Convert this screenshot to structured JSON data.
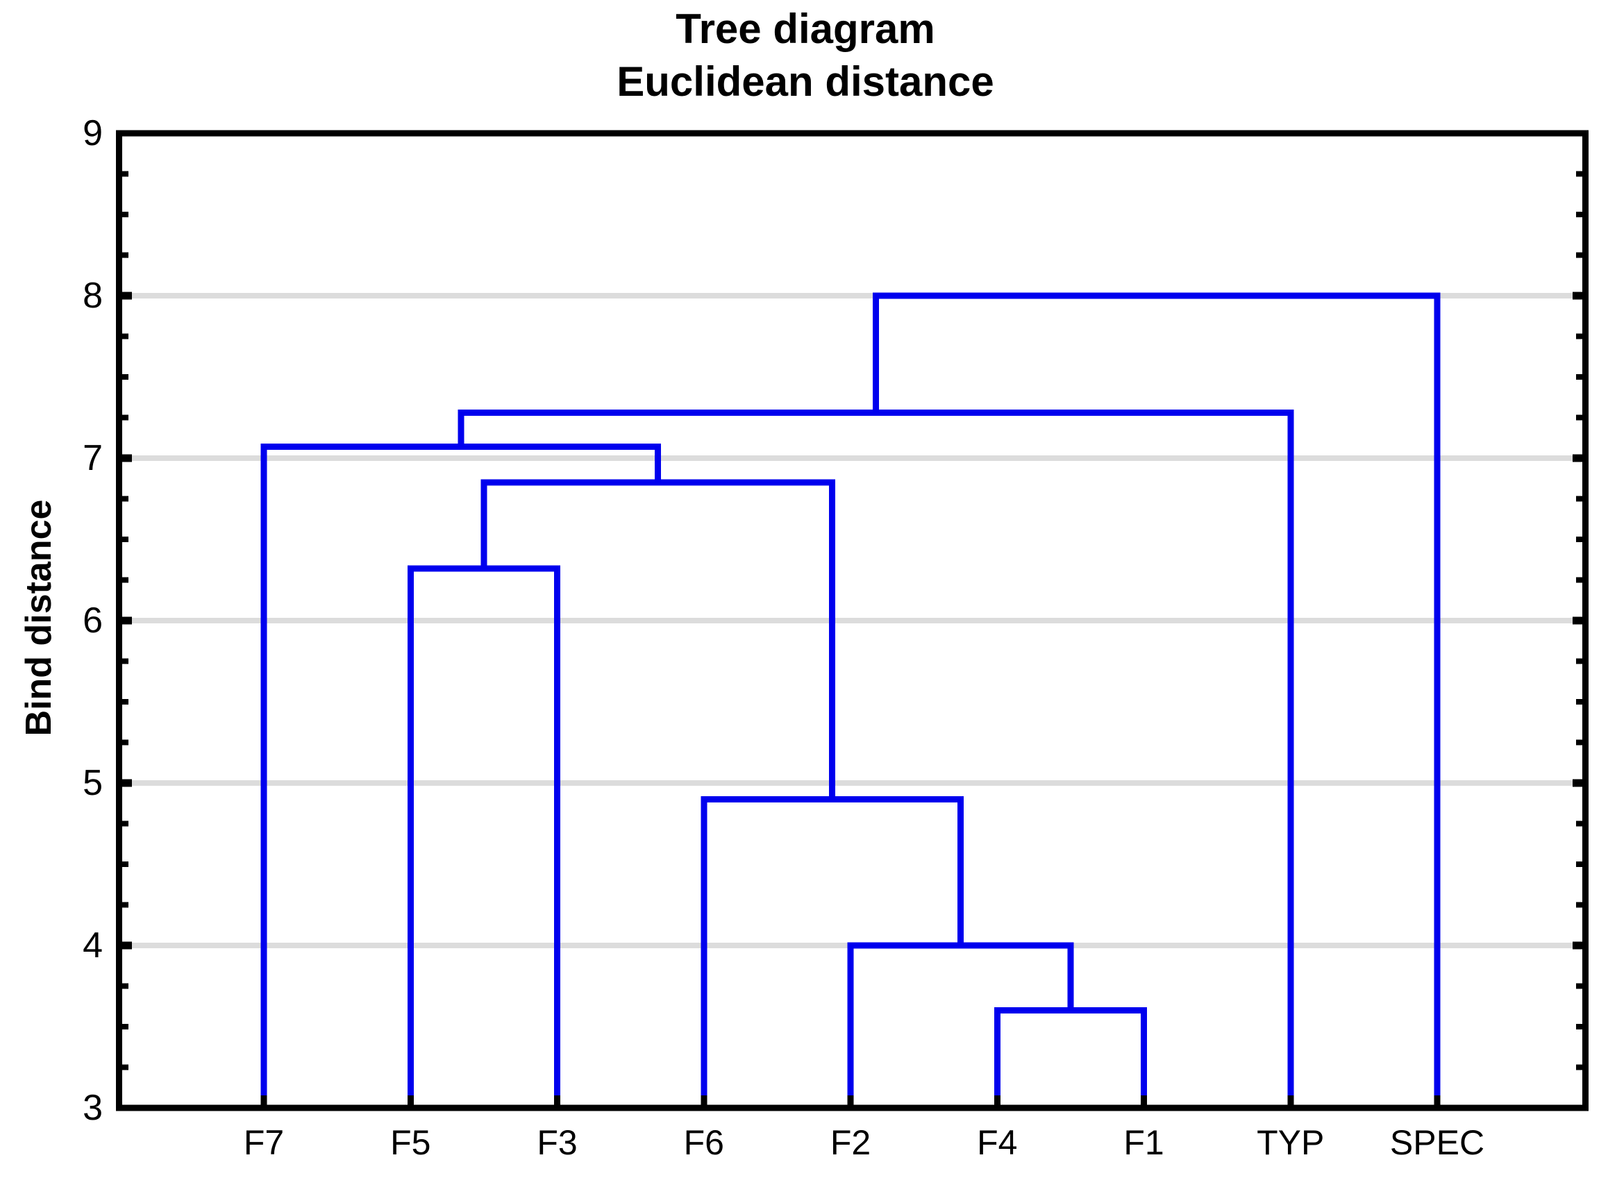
{
  "chart_data": {
    "type": "dendrogram",
    "title": "Tree diagram",
    "subtitle": "Euclidean distance",
    "ylabel": "Bind distance",
    "xlabel": "",
    "ylim": [
      3,
      9
    ],
    "yticks": [
      9,
      8,
      7,
      6,
      5,
      4,
      3
    ],
    "minor_tick_step": 0.25,
    "grid_on": true,
    "gridlines_at": [
      8,
      7,
      6,
      5,
      4
    ],
    "legend": "none",
    "leaves": [
      "F7",
      "F5",
      "F3",
      "F6",
      "F2",
      "F4",
      "F1",
      "TYP",
      "SPEC"
    ],
    "merges": [
      {
        "node": "n1",
        "children": [
          "F4",
          "F1"
        ],
        "height": 3.6
      },
      {
        "node": "n2",
        "children": [
          "F2",
          "n1"
        ],
        "height": 4.0
      },
      {
        "node": "n3",
        "children": [
          "F6",
          "n2"
        ],
        "height": 4.9
      },
      {
        "node": "n4",
        "children": [
          "F5",
          "F3"
        ],
        "height": 6.32
      },
      {
        "node": "n5",
        "children": [
          "n4",
          "n3"
        ],
        "height": 6.85
      },
      {
        "node": "n6",
        "children": [
          "F7",
          "n5"
        ],
        "height": 7.07
      },
      {
        "node": "n7",
        "children": [
          "n6",
          "TYP"
        ],
        "height": 7.28
      },
      {
        "node": "n8",
        "children": [
          "n7",
          "SPEC"
        ],
        "height": 8.0
      }
    ],
    "colors": {
      "line": "#0000EE",
      "grid": "#DCDCDC",
      "axis": "#000000",
      "text": "#000000",
      "background": "#FFFFFF"
    }
  }
}
